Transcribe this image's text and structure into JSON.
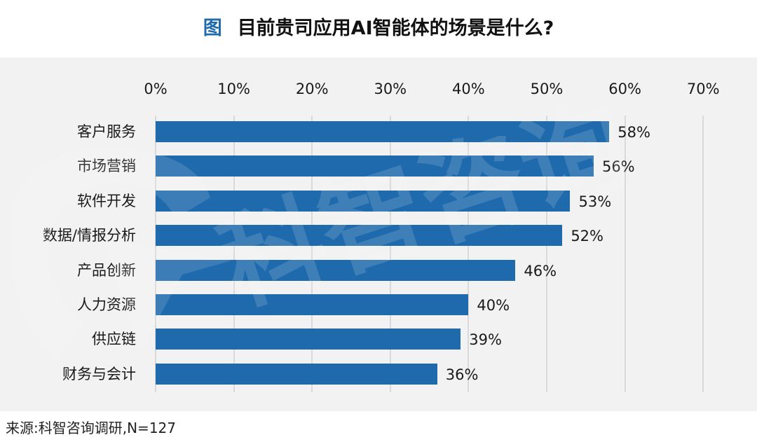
{
  "title": {
    "icon_label": "图",
    "text": "目前贵司应用AI智能体的场景是什么?"
  },
  "colors": {
    "bar": "#1f6aad",
    "panel_bg": "#f2f2f2",
    "gridline": "#d9d9d9",
    "title_icon": "#1f6aad"
  },
  "axis": {
    "ticks": [
      "0%",
      "10%",
      "20%",
      "30%",
      "40%",
      "50%",
      "60%",
      "70%"
    ]
  },
  "watermark": {
    "text": "科智咨询",
    "icon": "logo-icon"
  },
  "bars": [
    {
      "label": "客户服务",
      "value": 58,
      "display": "58%"
    },
    {
      "label": "市场营销",
      "value": 56,
      "display": "56%"
    },
    {
      "label": "软件开发",
      "value": 53,
      "display": "53%"
    },
    {
      "label": "数据/情报分析",
      "value": 52,
      "display": "52%"
    },
    {
      "label": "产品创新",
      "value": 46,
      "display": "46%"
    },
    {
      "label": "人力资源",
      "value": 40,
      "display": "40%"
    },
    {
      "label": "供应链",
      "value": 39,
      "display": "39%"
    },
    {
      "label": "财务与会计",
      "value": 36,
      "display": "36%"
    }
  ],
  "footer": {
    "source": "来源:科智咨询调研,N=127"
  },
  "chart_data": {
    "type": "bar",
    "orientation": "horizontal",
    "title": "目前贵司应用AI智能体的场景是什么?",
    "categories": [
      "客户服务",
      "市场营销",
      "软件开发",
      "数据/情报分析",
      "产品创新",
      "人力资源",
      "供应链",
      "财务与会计"
    ],
    "values": [
      58,
      56,
      53,
      52,
      46,
      40,
      39,
      36
    ],
    "unit": "%",
    "xlabel": "",
    "ylabel": "",
    "xlim": [
      0,
      70
    ],
    "xticks": [
      "0%",
      "10%",
      "20%",
      "30%",
      "40%",
      "50%",
      "60%",
      "70%"
    ],
    "x_axis_position": "top",
    "grid": true,
    "legend": null,
    "data_labels": [
      "58%",
      "56%",
      "53%",
      "52%",
      "46%",
      "40%",
      "39%",
      "36%"
    ],
    "source": "来源:科智咨询调研,N=127"
  }
}
